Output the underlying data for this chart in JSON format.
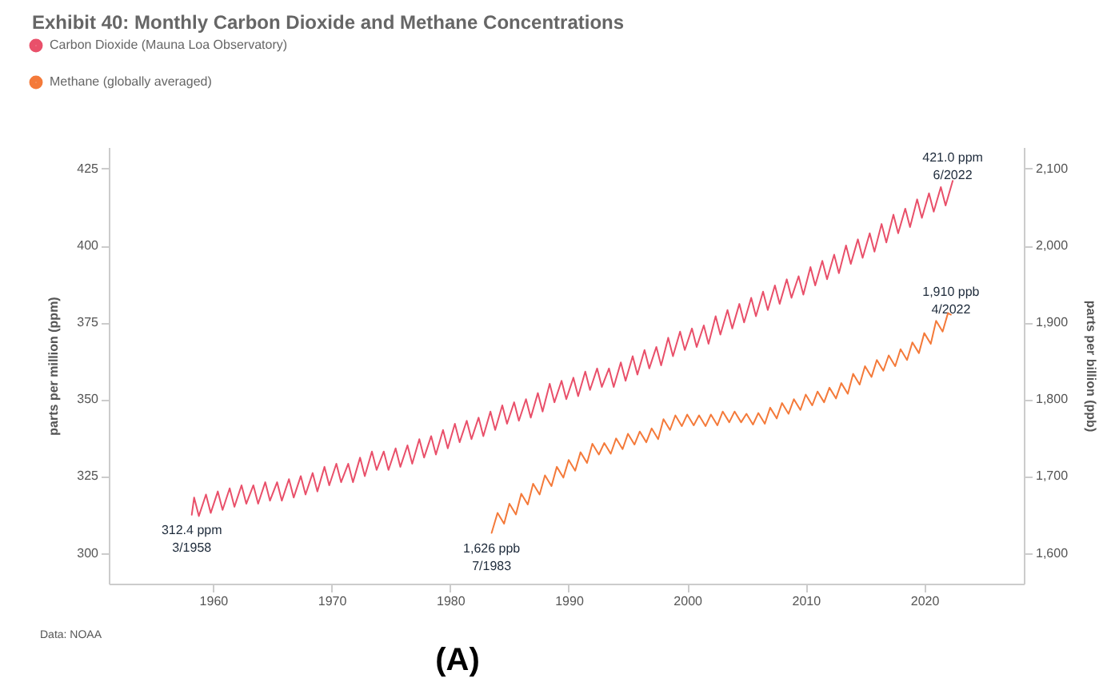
{
  "chart_data": {
    "type": "line",
    "title": "Exhibit 40: Monthly Carbon Dioxide and Methane Concentrations",
    "ylabel": "parts per million (ppm)",
    "y2label": "parts per billion (ppb)",
    "xlim": [
      1951.2,
      2028.4
    ],
    "xticks": [
      1960,
      1970,
      1980,
      1990,
      2000,
      2010,
      2020
    ],
    "ylim": [
      290,
      432
    ],
    "yticks": [
      300,
      325,
      350,
      375,
      400,
      425
    ],
    "y2lim": [
      1560,
      2128
    ],
    "y2ticks": [
      {
        "value": 1600,
        "label": "1,600"
      },
      {
        "value": 1700,
        "label": "1,700"
      },
      {
        "value": 1800,
        "label": "1,800"
      },
      {
        "value": 1900,
        "label": "1,900"
      },
      {
        "value": 2000,
        "label": "2,000"
      },
      {
        "value": 2100,
        "label": "2,100"
      }
    ],
    "legend": "top left",
    "line_style": "solid",
    "series": [
      {
        "name": "Carbon Dioxide (Mauna Loa Observatory)",
        "color": "#e9506a",
        "axis": "y",
        "x": [
          1958.2,
          1958.4,
          1958.8,
          1959.4,
          1959.8,
          1960.4,
          1960.8,
          1961.4,
          1961.8,
          1962.4,
          1962.8,
          1963.4,
          1963.8,
          1964.4,
          1964.8,
          1965.4,
          1965.8,
          1966.4,
          1966.8,
          1967.4,
          1967.8,
          1968.4,
          1968.8,
          1969.4,
          1969.8,
          1970.4,
          1970.8,
          1971.4,
          1971.8,
          1972.4,
          1972.8,
          1973.4,
          1973.8,
          1974.4,
          1974.8,
          1975.4,
          1975.8,
          1976.4,
          1976.8,
          1977.4,
          1977.8,
          1978.4,
          1978.8,
          1979.4,
          1979.8,
          1980.4,
          1980.8,
          1981.4,
          1981.8,
          1982.4,
          1982.8,
          1983.4,
          1983.8,
          1984.4,
          1984.8,
          1985.4,
          1985.8,
          1986.4,
          1986.8,
          1987.4,
          1987.8,
          1988.4,
          1988.8,
          1989.4,
          1989.8,
          1990.4,
          1990.8,
          1991.4,
          1991.8,
          1992.4,
          1992.8,
          1993.4,
          1993.8,
          1994.4,
          1994.8,
          1995.4,
          1995.8,
          1996.4,
          1996.8,
          1997.4,
          1997.8,
          1998.4,
          1998.8,
          1999.4,
          1999.8,
          2000.4,
          2000.8,
          2001.4,
          2001.8,
          2002.4,
          2002.8,
          2003.4,
          2003.8,
          2004.4,
          2004.8,
          2005.4,
          2005.8,
          2006.4,
          2006.8,
          2007.4,
          2007.8,
          2008.4,
          2008.8,
          2009.4,
          2009.8,
          2010.4,
          2010.8,
          2011.4,
          2011.8,
          2012.4,
          2012.8,
          2013.4,
          2013.8,
          2014.4,
          2014.8,
          2015.4,
          2015.8,
          2016.4,
          2016.8,
          2017.4,
          2017.8,
          2018.4,
          2018.8,
          2019.4,
          2019.8,
          2020.4,
          2020.8,
          2021.4,
          2021.8,
          2022.4
        ],
        "values": [
          312.4,
          318,
          312,
          319,
          313,
          320,
          314,
          321,
          315,
          322,
          316,
          322,
          316,
          323,
          317,
          323,
          317,
          324,
          318,
          325,
          319,
          326,
          320,
          328,
          322,
          329,
          323,
          329,
          323,
          331,
          325,
          333,
          327,
          333,
          327,
          334,
          328,
          335,
          329,
          337,
          331,
          338,
          332,
          340,
          334,
          342,
          336,
          343,
          337,
          344,
          338,
          346,
          340,
          348,
          342,
          349,
          343,
          350,
          344,
          352,
          346,
          355,
          349,
          356,
          350,
          357,
          351,
          359,
          353,
          360,
          354,
          360,
          354,
          362,
          356,
          364,
          358,
          366,
          360,
          367,
          361,
          370,
          364,
          372,
          366,
          373,
          367,
          374,
          368,
          377,
          371,
          379,
          373,
          381,
          375,
          383,
          377,
          385,
          379,
          387,
          381,
          389,
          383,
          390,
          384,
          393,
          387,
          395,
          389,
          397,
          391,
          400,
          394,
          402,
          396,
          404,
          398,
          407,
          401,
          410,
          404,
          412,
          406,
          415,
          409,
          417,
          411,
          419,
          413,
          421.0
        ]
      },
      {
        "name": "Methane (globally averaged)",
        "color": "#f47a3a",
        "axis": "y2",
        "x": [
          1983.5,
          1984.0,
          1984.55,
          1985.0,
          1985.55,
          1986.0,
          1986.55,
          1987.0,
          1987.55,
          1988.0,
          1988.55,
          1989.0,
          1989.55,
          1990.0,
          1990.55,
          1991.0,
          1991.55,
          1992.0,
          1992.55,
          1993.0,
          1993.55,
          1994.0,
          1994.55,
          1995.0,
          1995.55,
          1996.0,
          1996.55,
          1997.0,
          1997.55,
          1998.0,
          1998.55,
          1999.0,
          1999.55,
          2000.0,
          2000.55,
          2001.0,
          2001.55,
          2002.0,
          2002.55,
          2003.0,
          2003.55,
          2004.0,
          2004.55,
          2005.0,
          2005.55,
          2006.0,
          2006.55,
          2007.0,
          2007.55,
          2008.0,
          2008.55,
          2009.0,
          2009.55,
          2010.0,
          2010.55,
          2011.0,
          2011.55,
          2012.0,
          2012.55,
          2013.0,
          2013.55,
          2014.0,
          2014.55,
          2015.0,
          2015.55,
          2016.0,
          2016.55,
          2017.0,
          2017.55,
          2018.0,
          2018.55,
          2019.0,
          2019.55,
          2020.0,
          2020.55,
          2021.0,
          2021.55,
          2022.0,
          2022.25
        ],
        "values": [
          1626,
          1652,
          1638,
          1664,
          1650,
          1677,
          1663,
          1690,
          1676,
          1701,
          1687,
          1712,
          1698,
          1721,
          1707,
          1731,
          1717,
          1742,
          1728,
          1743,
          1729,
          1749,
          1735,
          1755,
          1741,
          1758,
          1744,
          1762,
          1748,
          1774,
          1760,
          1779,
          1765,
          1780,
          1766,
          1779,
          1765,
          1780,
          1766,
          1784,
          1770,
          1784,
          1770,
          1781,
          1767,
          1782,
          1768,
          1789,
          1775,
          1795,
          1781,
          1800,
          1786,
          1806,
          1792,
          1810,
          1796,
          1815,
          1801,
          1821,
          1807,
          1833,
          1819,
          1843,
          1829,
          1851,
          1837,
          1857,
          1843,
          1865,
          1851,
          1874,
          1860,
          1886,
          1872,
          1902,
          1888,
          1912,
          1910
        ]
      }
    ],
    "annotations": [
      {
        "text": "312.4 ppm\n3/1958",
        "x": 1958.2,
        "y": 312.4
      },
      {
        "text": "421.0 ppm\n6/2022",
        "x": 2022.4,
        "y": 421.0
      },
      {
        "text": "1,626 ppb\n7/1983",
        "x": 1983.5,
        "y": 306.5
      },
      {
        "text": "1,910 ppb\n4/2022",
        "x": 2022.25,
        "y": 377.5
      },
      "Data: NOAA",
      "(A)"
    ]
  }
}
